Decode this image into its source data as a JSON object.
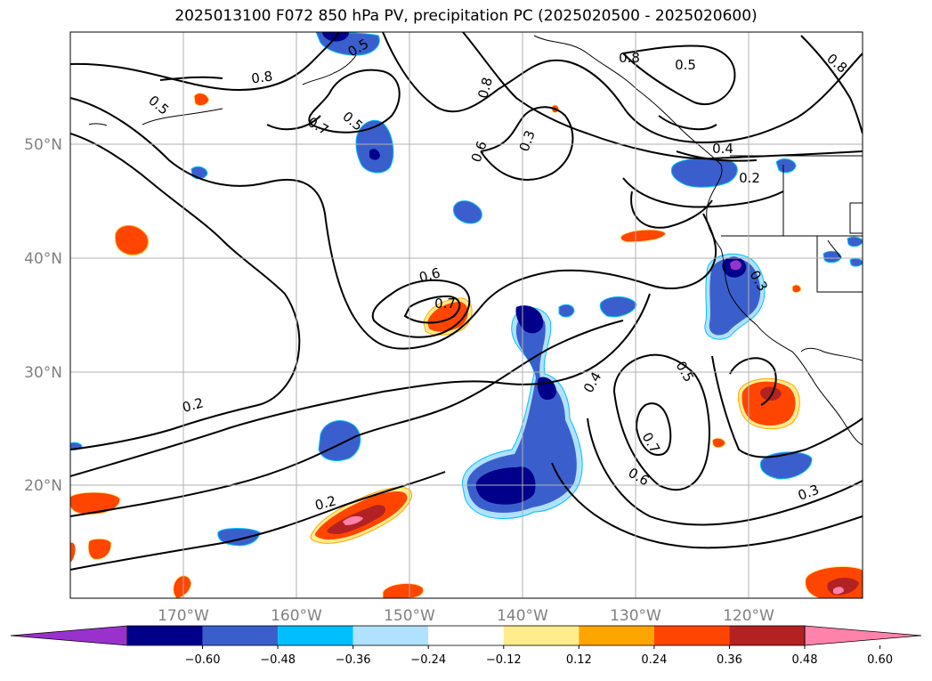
{
  "title": "2025013100 F072 850 hPa PV, precipitation PC (2025020500 - 2025020600)",
  "lat_labels": [
    "50°N",
    "40°N",
    "30°N",
    "20°N"
  ],
  "lon_labels": [
    "170°W",
    "160°W",
    "150°W",
    "140°W",
    "130°W",
    "120°W"
  ],
  "colorbar": {
    "ticks": [
      "−0.60",
      "−0.48",
      "−0.36",
      "−0.24",
      "−0.12",
      "0.12",
      "0.24",
      "0.36",
      "0.48",
      "0.60"
    ],
    "colors": [
      "#9932CC",
      "#00008B",
      "#3A5FCD",
      "#00BFFF",
      "#B0E2FF",
      "#FFFFFF",
      "#FFEC8B",
      "#FFA500",
      "#FF4500",
      "#B22222",
      "#FF82AB"
    ]
  },
  "contour_labels": [
    "0.8",
    "0.5",
    "0.5",
    "0.7",
    "0.5",
    "0.8",
    "0.6",
    "0.3",
    "0.8",
    "0.5",
    "0.8",
    "0.4",
    "0.2",
    "0.6",
    "0.7",
    "0.2",
    "0.2",
    "0.3",
    "0.4",
    "0.5",
    "0.7",
    "0.6",
    "0.3"
  ]
}
